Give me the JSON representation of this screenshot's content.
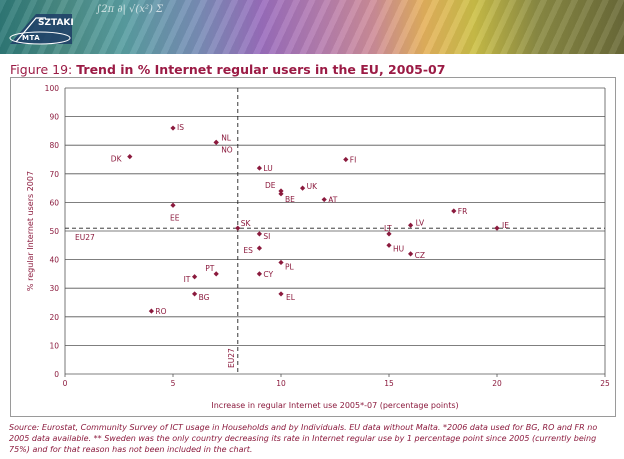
{
  "banner": {
    "logo_primary": "SZTAKI",
    "logo_secondary": "MTA",
    "decor_formula": "∫2π ∂|  √(x²)  Σ"
  },
  "figure": {
    "label": "Figure 19:",
    "title": "Trend in % Internet regular users in the EU, 2005-07",
    "source": "Source: Eurostat, Community Survey of ICT usage in Households and by Individuals. EU data without Malta. *2006 data used for BG, RO and FR no 2005 data available. ** Sweden was the only country decreasing its rate in Internet regular use by 1 percentage point since 2005 (currently being 75%) and for that reason has not been included in the chart."
  },
  "colors": {
    "accent": "#9b1b45",
    "marker": "#8b1a3d",
    "grid": "#555555",
    "axis_text": "#8b1a3d"
  },
  "chart_data": {
    "type": "scatter",
    "title": "Trend in % Internet regular users in the EU, 2005-07",
    "xlabel": "Increase in regular Internet use 2005*-07 (percentage points)",
    "ylabel": "% regular Internet users 2007",
    "xlim": [
      0,
      25
    ],
    "ylim": [
      0,
      100
    ],
    "xticks": [
      0,
      5,
      10,
      15,
      20,
      25
    ],
    "yticks": [
      0,
      10,
      20,
      30,
      40,
      50,
      60,
      70,
      80,
      90,
      100
    ],
    "grid": "horizontal",
    "reference_lines": [
      {
        "orientation": "horizontal",
        "value": 51,
        "label": "EU27"
      },
      {
        "orientation": "vertical",
        "value": 8,
        "label": "EU27"
      }
    ],
    "points": [
      {
        "label": "IS",
        "x": 5,
        "y": 86
      },
      {
        "label": "NL",
        "x": 7,
        "y": 81
      },
      {
        "label": "NO",
        "x": 7,
        "y": 81
      },
      {
        "label": "DK",
        "x": 3,
        "y": 76
      },
      {
        "label": "FI",
        "x": 13,
        "y": 75
      },
      {
        "label": "LU",
        "x": 9,
        "y": 72
      },
      {
        "label": "DE",
        "x": 10,
        "y": 64
      },
      {
        "label": "UK",
        "x": 11,
        "y": 65
      },
      {
        "label": "BE",
        "x": 10,
        "y": 63
      },
      {
        "label": "AT",
        "x": 12,
        "y": 61
      },
      {
        "label": "EE",
        "x": 5,
        "y": 59
      },
      {
        "label": "FR",
        "x": 18,
        "y": 57
      },
      {
        "label": "LV",
        "x": 16,
        "y": 52
      },
      {
        "label": "LT",
        "x": 15,
        "y": 49
      },
      {
        "label": "IE",
        "x": 20,
        "y": 51
      },
      {
        "label": "SK",
        "x": 8,
        "y": 51
      },
      {
        "label": "SI",
        "x": 9,
        "y": 49
      },
      {
        "label": "ES",
        "x": 9,
        "y": 44
      },
      {
        "label": "HU",
        "x": 15,
        "y": 45
      },
      {
        "label": "CZ",
        "x": 16,
        "y": 42
      },
      {
        "label": "PL",
        "x": 10,
        "y": 39
      },
      {
        "label": "PT",
        "x": 7,
        "y": 35
      },
      {
        "label": "CY",
        "x": 9,
        "y": 35
      },
      {
        "label": "IT",
        "x": 6,
        "y": 34
      },
      {
        "label": "BG",
        "x": 6,
        "y": 28
      },
      {
        "label": "EL",
        "x": 10,
        "y": 28
      },
      {
        "label": "RO",
        "x": 4,
        "y": 22
      }
    ]
  }
}
